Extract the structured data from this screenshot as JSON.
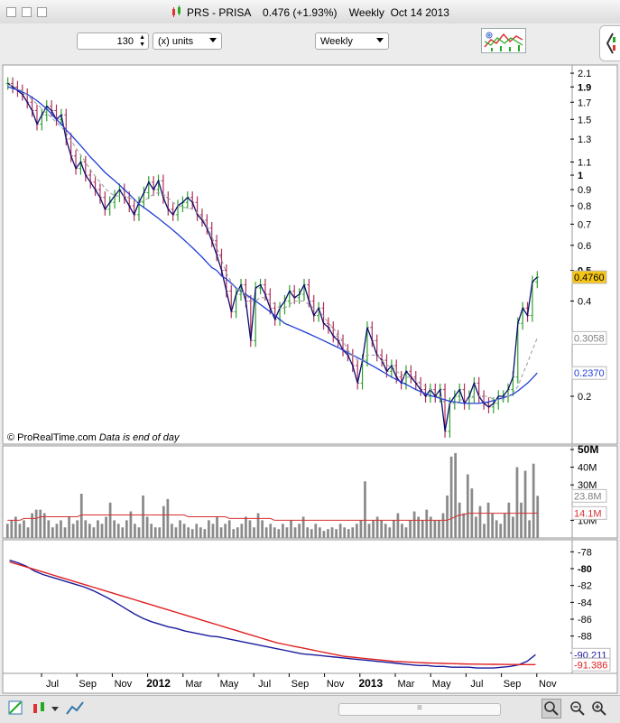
{
  "window": {
    "title": "PRS - PRISA    0.476 (+1.93%)    Weekly  Oct 14 2013"
  },
  "toolbar": {
    "bars_value": "130",
    "units_label": "(x) units",
    "period_label": "Weekly"
  },
  "watermark": {
    "source": "© ProRealTime.com",
    "note": "Data is end of day"
  },
  "colors": {
    "up": "#2ca02c",
    "down": "#b0305a",
    "line": "#0b0b6e",
    "ma_long": "#1f3fd6",
    "ma_short": "#a0a0a0",
    "vol_ma": "#d63030",
    "osc": "#1a1a9e",
    "osc_signal": "#e02020"
  },
  "chart_data": [
    {
      "type": "line",
      "panel": "price",
      "y_scale": "log",
      "ylim": [
        0.145,
        2.2
      ],
      "ticks": [
        {
          "v": 2.1,
          "label": "2.1",
          "bold": false
        },
        {
          "v": 1.9,
          "label": "1.9",
          "bold": true
        },
        {
          "v": 1.7,
          "label": "1.7",
          "bold": false
        },
        {
          "v": 1.5,
          "label": "1.5",
          "bold": false
        },
        {
          "v": 1.3,
          "label": "1.3",
          "bold": false
        },
        {
          "v": 1.1,
          "label": "1.1",
          "bold": false
        },
        {
          "v": 1.0,
          "label": "1",
          "bold": true
        },
        {
          "v": 0.9,
          "label": "0.9",
          "bold": false
        },
        {
          "v": 0.8,
          "label": "0.8",
          "bold": false
        },
        {
          "v": 0.7,
          "label": "0.7",
          "bold": false
        },
        {
          "v": 0.6,
          "label": "0.6",
          "bold": false
        },
        {
          "v": 0.5,
          "label": "0.5",
          "bold": true
        },
        {
          "v": 0.4,
          "label": "0.4",
          "bold": false
        },
        {
          "v": 0.2,
          "label": "0.2",
          "bold": false
        }
      ],
      "last_labels": [
        {
          "v": 0.476,
          "label": "0.4760",
          "color": "#000000",
          "bg": "#f5c518"
        },
        {
          "v": 0.3058,
          "label": "0.3058",
          "color": "#808080",
          "bg": "#ffffff"
        },
        {
          "v": 0.237,
          "label": "0.2370",
          "color": "#1f3fd6",
          "bg": "#ffffff"
        }
      ],
      "close": [
        1.95,
        1.9,
        1.85,
        1.8,
        1.7,
        1.6,
        1.45,
        1.55,
        1.65,
        1.6,
        1.5,
        1.55,
        1.3,
        1.15,
        1.05,
        1.1,
        1.0,
        0.95,
        0.9,
        0.85,
        0.78,
        0.82,
        0.86,
        0.9,
        0.85,
        0.8,
        0.75,
        0.82,
        0.88,
        0.95,
        0.9,
        0.96,
        0.85,
        0.78,
        0.75,
        0.8,
        0.82,
        0.85,
        0.82,
        0.75,
        0.72,
        0.68,
        0.62,
        0.56,
        0.5,
        0.43,
        0.37,
        0.42,
        0.45,
        0.4,
        0.3,
        0.44,
        0.45,
        0.42,
        0.38,
        0.35,
        0.38,
        0.4,
        0.43,
        0.41,
        0.42,
        0.45,
        0.4,
        0.36,
        0.38,
        0.34,
        0.33,
        0.31,
        0.3,
        0.28,
        0.27,
        0.25,
        0.22,
        0.26,
        0.33,
        0.3,
        0.27,
        0.26,
        0.24,
        0.25,
        0.23,
        0.22,
        0.24,
        0.23,
        0.22,
        0.21,
        0.2,
        0.21,
        0.2,
        0.21,
        0.155,
        0.19,
        0.2,
        0.21,
        0.19,
        0.2,
        0.22,
        0.2,
        0.19,
        0.185,
        0.19,
        0.2,
        0.2,
        0.21,
        0.23,
        0.34,
        0.38,
        0.36,
        0.46,
        0.476
      ],
      "ma_long": [
        1.9,
        1.88,
        1.86,
        1.83,
        1.8,
        1.76,
        1.72,
        1.67,
        1.62,
        1.56,
        1.5,
        1.45,
        1.39,
        1.34,
        1.29,
        1.24,
        1.19,
        1.14,
        1.1,
        1.06,
        1.02,
        0.99,
        0.96,
        0.93,
        0.9,
        0.87,
        0.84,
        0.81,
        0.79,
        0.77,
        0.75,
        0.73,
        0.71,
        0.69,
        0.67,
        0.65,
        0.63,
        0.61,
        0.59,
        0.57,
        0.55,
        0.53,
        0.51,
        0.5,
        0.48,
        0.47,
        0.455,
        0.44,
        0.43,
        0.42,
        0.41,
        0.4,
        0.39,
        0.38,
        0.37,
        0.36,
        0.35,
        0.34,
        0.335,
        0.33,
        0.325,
        0.32,
        0.315,
        0.31,
        0.305,
        0.3,
        0.295,
        0.29,
        0.285,
        0.28,
        0.275,
        0.27,
        0.265,
        0.26,
        0.255,
        0.25,
        0.245,
        0.24,
        0.235,
        0.23,
        0.226,
        0.222,
        0.218,
        0.214,
        0.21,
        0.207,
        0.204,
        0.201,
        0.199,
        0.197,
        0.195,
        0.193,
        0.192,
        0.191,
        0.19,
        0.19,
        0.19,
        0.19,
        0.191,
        0.192,
        0.194,
        0.196,
        0.198,
        0.2,
        0.203,
        0.208,
        0.214,
        0.22,
        0.228,
        0.237
      ],
      "ma_short": [
        1.93,
        1.91,
        1.88,
        1.84,
        1.79,
        1.73,
        1.68,
        1.62,
        1.57,
        1.52,
        1.47,
        1.42,
        1.36,
        1.29,
        1.22,
        1.16,
        1.1,
        1.04,
        0.99,
        0.95,
        0.91,
        0.88,
        0.86,
        0.86,
        0.86,
        0.85,
        0.83,
        0.82,
        0.83,
        0.85,
        0.87,
        0.88,
        0.87,
        0.85,
        0.82,
        0.8,
        0.79,
        0.79,
        0.78,
        0.76,
        0.73,
        0.69,
        0.64,
        0.59,
        0.54,
        0.49,
        0.46,
        0.44,
        0.43,
        0.42,
        0.4,
        0.4,
        0.41,
        0.41,
        0.4,
        0.39,
        0.38,
        0.38,
        0.39,
        0.4,
        0.4,
        0.4,
        0.39,
        0.38,
        0.37,
        0.36,
        0.34,
        0.33,
        0.31,
        0.3,
        0.28,
        0.27,
        0.26,
        0.26,
        0.27,
        0.27,
        0.27,
        0.26,
        0.25,
        0.25,
        0.24,
        0.235,
        0.23,
        0.23,
        0.225,
        0.22,
        0.215,
        0.21,
        0.205,
        0.2,
        0.19,
        0.19,
        0.19,
        0.195,
        0.195,
        0.195,
        0.2,
        0.2,
        0.2,
        0.2,
        0.195,
        0.195,
        0.195,
        0.2,
        0.205,
        0.215,
        0.235,
        0.255,
        0.28,
        0.3058
      ]
    },
    {
      "type": "bar",
      "panel": "volume",
      "ylim": [
        0,
        50
      ],
      "ticks": [
        {
          "v": 50,
          "label": "50M",
          "bold": true
        },
        {
          "v": 40,
          "label": "40M",
          "bold": false
        },
        {
          "v": 30,
          "label": "30M",
          "bold": false
        },
        {
          "v": 10,
          "label": "10M",
          "bold": false
        }
      ],
      "last_labels": [
        {
          "v": 23.8,
          "label": "23.8M",
          "color": "#808080",
          "bg": "#ffffff"
        },
        {
          "v": 14.1,
          "label": "14.1M",
          "color": "#d63030",
          "bg": "#ffffff"
        }
      ],
      "values": [
        8,
        10,
        12,
        8,
        10,
        6,
        14,
        16,
        16,
        14,
        10,
        6,
        8,
        10,
        6,
        12,
        8,
        10,
        25,
        10,
        8,
        6,
        10,
        8,
        12,
        20,
        10,
        8,
        6,
        10,
        15,
        8,
        6,
        24,
        12,
        8,
        6,
        6,
        18,
        22,
        8,
        6,
        10,
        8,
        6,
        5,
        8,
        6,
        5,
        10,
        8,
        12,
        6,
        8,
        10,
        5,
        6,
        8,
        12,
        10,
        6,
        14,
        10,
        6,
        8,
        6,
        5,
        8,
        6,
        10,
        6,
        8,
        12,
        6,
        5,
        8,
        6,
        4,
        5,
        6,
        5,
        8,
        6,
        5,
        6,
        8,
        10,
        32,
        8,
        10,
        12,
        10,
        8,
        6,
        10,
        14,
        8,
        6,
        10,
        15,
        12,
        10,
        16,
        12,
        10,
        10,
        14,
        24,
        46,
        48,
        20,
        14,
        36,
        28,
        12,
        18,
        8,
        20,
        14,
        10,
        8,
        14,
        20,
        12,
        40,
        20,
        38,
        10,
        42,
        23.8
      ],
      "ma": [
        10,
        10,
        10,
        10,
        11,
        11,
        11,
        11,
        12,
        12,
        12,
        12,
        12,
        12,
        12,
        12,
        12,
        12,
        13,
        13,
        13,
        13,
        13,
        13,
        13,
        13,
        13,
        13,
        13,
        13,
        13,
        13,
        13,
        13,
        13,
        13,
        13,
        13,
        13,
        13,
        13,
        13,
        13,
        13,
        12,
        12,
        12,
        12,
        12,
        12,
        12,
        12,
        12,
        12,
        11,
        11,
        11,
        11,
        11,
        11,
        11,
        11,
        11,
        11,
        11,
        10,
        10,
        10,
        10,
        10,
        10,
        10,
        10,
        10,
        10,
        10,
        10,
        10,
        10,
        10,
        10,
        10,
        10,
        10,
        10,
        10,
        10,
        10,
        10,
        10,
        10,
        10,
        10,
        10,
        10,
        10,
        10,
        10,
        10,
        10,
        10,
        10,
        10,
        10,
        10,
        10,
        10,
        10,
        11,
        12,
        13,
        13,
        14,
        14,
        14,
        14,
        14,
        14,
        14,
        14,
        14,
        14,
        14,
        14,
        14,
        14,
        14,
        14,
        14,
        14.1
      ]
    },
    {
      "type": "line",
      "panel": "oscillator",
      "ylim": [
        -92,
        -77
      ],
      "ticks": [
        {
          "v": -78,
          "label": "-78",
          "bold": false
        },
        {
          "v": -80,
          "label": "-80",
          "bold": true
        },
        {
          "v": -82,
          "label": "-82",
          "bold": false
        },
        {
          "v": -84,
          "label": "-84",
          "bold": false
        },
        {
          "v": -86,
          "label": "-86",
          "bold": false
        },
        {
          "v": -88,
          "label": "-88",
          "bold": false
        },
        {
          "v": -90,
          "label": "-90",
          "bold": true
        }
      ],
      "last_labels": [
        {
          "v": -90.211,
          "label": "-90.211",
          "color": "#1a1a9e",
          "bg": "#ffffff"
        },
        {
          "v": -91.386,
          "label": "-91.386",
          "color": "#e02020",
          "bg": "#ffffff"
        }
      ],
      "series": [
        {
          "name": "",
          "values": [
            -79,
            -79.3,
            -79.7,
            -80.3,
            -80.7,
            -81,
            -81.3,
            -81.6,
            -81.9,
            -82.2,
            -82.6,
            -83.1,
            -83.6,
            -84.2,
            -84.8,
            -85.4,
            -85.9,
            -86.3,
            -86.6,
            -86.9,
            -87.1,
            -87.4,
            -87.6,
            -87.8,
            -88,
            -88.1,
            -88.3,
            -88.5,
            -88.7,
            -88.9,
            -89.1,
            -89.3,
            -89.5,
            -89.7,
            -89.9,
            -90.1,
            -90.2,
            -90.3,
            -90.4,
            -90.5,
            -90.6,
            -90.7,
            -90.8,
            -90.9,
            -91,
            -91.1,
            -91.2,
            -91.3,
            -91.4,
            -91.5,
            -91.5,
            -91.6,
            -91.6,
            -91.7,
            -91.7,
            -91.7,
            -91.8,
            -91.8,
            -91.8,
            -91.7,
            -91.6,
            -91.4,
            -91,
            -90.211
          ]
        },
        {
          "name": "",
          "values": [
            -79.2,
            -79.5,
            -79.8,
            -80.1,
            -80.4,
            -80.7,
            -81,
            -81.3,
            -81.6,
            -81.9,
            -82.2,
            -82.5,
            -82.8,
            -83.1,
            -83.4,
            -83.7,
            -84,
            -84.3,
            -84.6,
            -84.9,
            -85.2,
            -85.5,
            -85.8,
            -86.1,
            -86.4,
            -86.7,
            -87,
            -87.3,
            -87.6,
            -87.9,
            -88.2,
            -88.5,
            -88.8,
            -89,
            -89.2,
            -89.4,
            -89.6,
            -89.8,
            -90,
            -90.2,
            -90.4,
            -90.5,
            -90.6,
            -90.7,
            -90.8,
            -90.9,
            -91,
            -91.05,
            -91.1,
            -91.15,
            -91.2,
            -91.22,
            -91.25,
            -91.27,
            -91.3,
            -91.32,
            -91.34,
            -91.35,
            -91.36,
            -91.37,
            -91.38,
            -91.38,
            -91.386,
            -91.386
          ]
        }
      ]
    }
  ],
  "x_axis": {
    "labels": [
      {
        "label": "Jul",
        "bold": false
      },
      {
        "label": "Sep",
        "bold": false
      },
      {
        "label": "Nov",
        "bold": false
      },
      {
        "label": "2012",
        "bold": true
      },
      {
        "label": "Mar",
        "bold": false
      },
      {
        "label": "May",
        "bold": false
      },
      {
        "label": "Jul",
        "bold": false
      },
      {
        "label": "Sep",
        "bold": false
      },
      {
        "label": "Nov",
        "bold": false
      },
      {
        "label": "2013",
        "bold": true
      },
      {
        "label": "Mar",
        "bold": false
      },
      {
        "label": "May",
        "bold": false
      },
      {
        "label": "Jul",
        "bold": false
      },
      {
        "label": "Sep",
        "bold": false
      },
      {
        "label": "Nov",
        "bold": false
      }
    ]
  }
}
